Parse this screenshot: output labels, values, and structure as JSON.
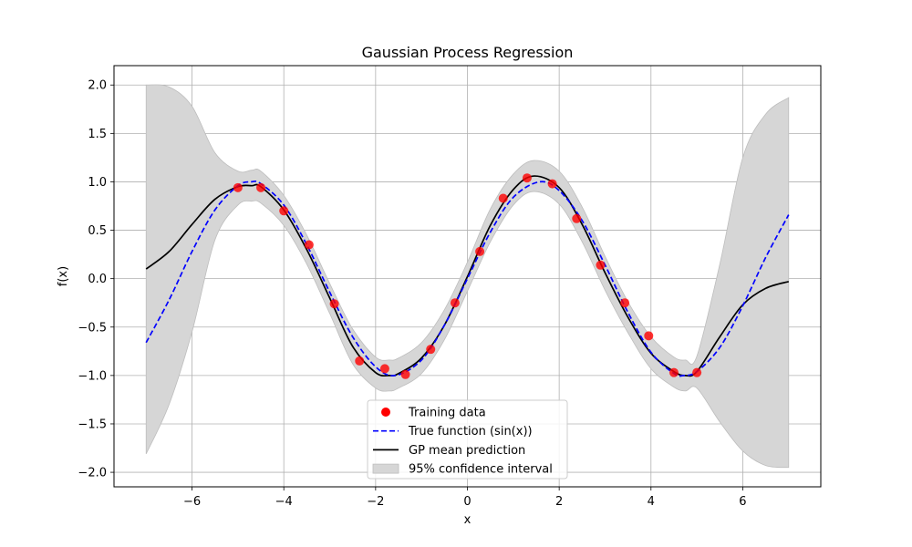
{
  "chart_data": {
    "type": "line",
    "title": "Gaussian Process Regression",
    "xlabel": "x",
    "ylabel": "f(x)",
    "xlim": [
      -7.7,
      7.7
    ],
    "ylim": [
      -2.15,
      2.2
    ],
    "xticks": [
      -6,
      -4,
      -2,
      0,
      2,
      4,
      6
    ],
    "xtick_labels": [
      "−6",
      "−4",
      "−2",
      "0",
      "2",
      "4",
      "6"
    ],
    "yticks": [
      -2.0,
      -1.5,
      -1.0,
      -0.5,
      0.0,
      0.5,
      1.0,
      1.5,
      2.0
    ],
    "ytick_labels": [
      "−2.0",
      "−1.5",
      "−1.0",
      "−0.5",
      "0.0",
      "0.5",
      "1.0",
      "1.5",
      "2.0"
    ],
    "grid": true,
    "legend_position": "bottom-center",
    "series": [
      {
        "name": "Training data",
        "kind": "scatter",
        "color": "#ff0000",
        "x": [
          -5.0,
          -4.5,
          -4.0,
          -3.45,
          -2.9,
          -2.35,
          -1.8,
          -1.35,
          -0.8,
          -0.27,
          0.27,
          0.78,
          1.3,
          1.85,
          2.38,
          2.9,
          3.43,
          3.95,
          4.5,
          5.0
        ],
        "y": [
          0.94,
          0.94,
          0.7,
          0.35,
          -0.26,
          -0.85,
          -0.93,
          -0.99,
          -0.73,
          -0.25,
          0.28,
          0.83,
          1.04,
          0.98,
          0.62,
          0.14,
          -0.25,
          -0.59,
          -0.97,
          -0.97
        ]
      },
      {
        "name": "True function (sin(x))",
        "kind": "line",
        "color": "#0000ff",
        "dash": "dashed",
        "x": [
          -7.0,
          -6.5,
          -6.0,
          -5.5,
          -5.0,
          -4.71,
          -4.5,
          -4.0,
          -3.5,
          -3.0,
          -2.5,
          -2.0,
          -1.57,
          -1.0,
          -0.5,
          0.0,
          0.5,
          1.0,
          1.57,
          2.0,
          2.5,
          3.0,
          3.5,
          4.0,
          4.5,
          4.71,
          5.0,
          5.5,
          6.0,
          6.5,
          7.0
        ],
        "y": [
          -0.66,
          -0.22,
          0.28,
          0.71,
          0.96,
          1.0,
          0.98,
          0.76,
          0.35,
          -0.14,
          -0.6,
          -0.91,
          -1.0,
          -0.84,
          -0.48,
          0.0,
          0.48,
          0.84,
          1.0,
          0.91,
          0.6,
          0.14,
          -0.35,
          -0.76,
          -0.98,
          -1.0,
          -0.96,
          -0.71,
          -0.28,
          0.22,
          0.66
        ]
      },
      {
        "name": "GP mean prediction",
        "kind": "line",
        "color": "#000000",
        "x": [
          -7.0,
          -6.5,
          -6.0,
          -5.5,
          -5.0,
          -4.7,
          -4.5,
          -4.0,
          -3.5,
          -3.0,
          -2.5,
          -2.0,
          -1.7,
          -1.5,
          -1.0,
          -0.5,
          0.0,
          0.5,
          1.0,
          1.45,
          2.0,
          2.5,
          3.0,
          3.5,
          4.0,
          4.5,
          4.75,
          5.0,
          5.5,
          6.0,
          6.5,
          7.0
        ],
        "y": [
          0.1,
          0.28,
          0.56,
          0.82,
          0.95,
          0.96,
          0.95,
          0.71,
          0.3,
          -0.2,
          -0.7,
          -0.97,
          -1.0,
          -0.98,
          -0.82,
          -0.48,
          0.02,
          0.55,
          0.92,
          1.06,
          0.94,
          0.56,
          0.06,
          -0.4,
          -0.77,
          -0.96,
          -1.0,
          -0.96,
          -0.6,
          -0.27,
          -0.1,
          -0.03
        ]
      },
      {
        "name": "95% confidence interval",
        "kind": "band",
        "color": "#d6d6d6",
        "x": [
          -7.0,
          -6.5,
          -6.0,
          -5.5,
          -5.0,
          -4.7,
          -4.5,
          -4.0,
          -3.5,
          -3.0,
          -2.5,
          -2.0,
          -1.7,
          -1.5,
          -1.0,
          -0.5,
          0.0,
          0.5,
          1.0,
          1.45,
          2.0,
          2.5,
          3.0,
          3.5,
          4.0,
          4.5,
          4.75,
          5.0,
          5.5,
          6.0,
          6.5,
          7.0
        ],
        "lower": [
          -1.81,
          -1.3,
          -0.55,
          0.4,
          0.76,
          0.8,
          0.78,
          0.55,
          0.15,
          -0.36,
          -0.88,
          -1.13,
          -1.16,
          -1.13,
          -0.98,
          -0.63,
          -0.13,
          0.38,
          0.76,
          0.9,
          0.77,
          0.38,
          -0.12,
          -0.56,
          -0.93,
          -1.12,
          -1.16,
          -1.13,
          -1.48,
          -1.78,
          -1.93,
          -1.95
        ],
        "upper": [
          2.0,
          1.98,
          1.78,
          1.3,
          1.11,
          1.12,
          1.11,
          0.86,
          0.45,
          -0.05,
          -0.52,
          -0.81,
          -0.84,
          -0.82,
          -0.66,
          -0.32,
          0.17,
          0.72,
          1.08,
          1.22,
          1.11,
          0.74,
          0.23,
          -0.24,
          -0.6,
          -0.81,
          -0.84,
          -0.8,
          0.15,
          1.25,
          1.7,
          1.87
        ]
      }
    ]
  }
}
